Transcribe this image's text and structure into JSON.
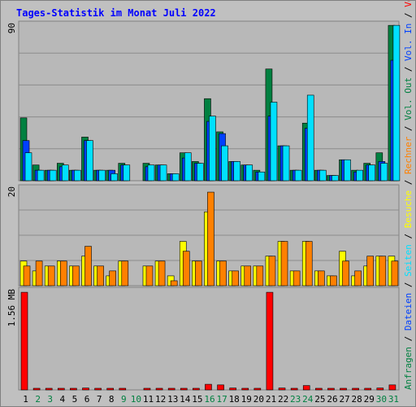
{
  "title": "Tages-Statistik im Monat Juli 2022",
  "colors": {
    "background": "#c0c0c0",
    "panel": "#b8b8b8",
    "title": "#0000ff",
    "grid": "#8c8c8c",
    "weekday_label": "#000000",
    "weekend_label": "#008040",
    "anfragen": "#008040",
    "dateien": "#0040ff",
    "seiten": "#00e0ff",
    "besuche": "#ffff00",
    "rechner": "#ff8000",
    "volumen": "#ff0000"
  },
  "right_labels": [
    [
      {
        "text": "Anfragen",
        "color": "#008040"
      },
      {
        "text": " / ",
        "color": "#000000"
      },
      {
        "text": "Dateien",
        "color": "#0040ff"
      },
      {
        "text": " / ",
        "color": "#000000"
      },
      {
        "text": "Seiten",
        "color": "#00e0ff"
      },
      {
        "text": " / ",
        "color": "#000000"
      },
      {
        "text": "Besuche",
        "color": "#ffff00"
      },
      {
        "text": " / ",
        "color": "#000000"
      },
      {
        "text": "Rechner",
        "color": "#ff8000"
      },
      {
        "text": " / ",
        "color": "#000000"
      },
      {
        "text": "Vol. Out",
        "color": "#008040"
      },
      {
        "text": " / ",
        "color": "#000000"
      },
      {
        "text": "Vol. In",
        "color": "#0040ff"
      },
      {
        "text": " / ",
        "color": "#000000"
      },
      {
        "text": "Volumen",
        "color": "#ff0000"
      }
    ]
  ],
  "chart_data": [
    {
      "type": "bar",
      "panel": "hits",
      "ymax_label": "90",
      "ylim": [
        0,
        90
      ],
      "categories": [
        "1",
        "2",
        "3",
        "4",
        "5",
        "6",
        "7",
        "8",
        "9",
        "10",
        "11",
        "12",
        "13",
        "14",
        "15",
        "16",
        "17",
        "18",
        "19",
        "20",
        "21",
        "22",
        "23",
        "24",
        "25",
        "26",
        "27",
        "28",
        "29",
        "30",
        "31"
      ],
      "series": [
        {
          "name": "Anfragen",
          "values": [
            36,
            9,
            6,
            10,
            6,
            25,
            6,
            6,
            10,
            0,
            10,
            9,
            4,
            16,
            11,
            47,
            28,
            11,
            9,
            6,
            64,
            20,
            6,
            33,
            6,
            3,
            12,
            6,
            10,
            16,
            89
          ]
        },
        {
          "name": "Dateien",
          "values": [
            23,
            6,
            6,
            8,
            6,
            23,
            6,
            6,
            9,
            0,
            8,
            9,
            4,
            13,
            10,
            34,
            27,
            11,
            9,
            5,
            37,
            20,
            6,
            30,
            6,
            3,
            12,
            5,
            9,
            11,
            69
          ]
        },
        {
          "name": "Seiten",
          "values": [
            16,
            6,
            6,
            9,
            6,
            23,
            6,
            4,
            9,
            0,
            9,
            9,
            4,
            16,
            10,
            37,
            20,
            11,
            9,
            5,
            45,
            20,
            6,
            49,
            6,
            3,
            12,
            6,
            9,
            10,
            89
          ]
        }
      ]
    },
    {
      "type": "bar",
      "panel": "visits",
      "ymax_label": "20",
      "ylim": [
        0,
        20
      ],
      "categories": [
        "1",
        "2",
        "3",
        "4",
        "5",
        "6",
        "7",
        "8",
        "9",
        "10",
        "11",
        "12",
        "13",
        "14",
        "15",
        "16",
        "17",
        "18",
        "19",
        "20",
        "21",
        "22",
        "23",
        "24",
        "25",
        "26",
        "27",
        "28",
        "29",
        "30",
        "31"
      ],
      "series": [
        {
          "name": "Besuche",
          "values": [
            5,
            3,
            4,
            5,
            4,
            6,
            4,
            2,
            5,
            0,
            4,
            5,
            2,
            9,
            5,
            15,
            5,
            3,
            4,
            4,
            6,
            9,
            3,
            9,
            3,
            2,
            7,
            2,
            4,
            6,
            6
          ]
        },
        {
          "name": "Rechner",
          "values": [
            4,
            5,
            4,
            5,
            4,
            8,
            4,
            3,
            5,
            0,
            4,
            5,
            1,
            7,
            5,
            19,
            5,
            3,
            4,
            4,
            6,
            9,
            3,
            9,
            3,
            2,
            5,
            3,
            6,
            6,
            5
          ]
        }
      ]
    },
    {
      "type": "bar",
      "panel": "volume",
      "ymax_label": "1.56 MB",
      "ylim": [
        0,
        1.6
      ],
      "categories": [
        "1",
        "2",
        "3",
        "4",
        "5",
        "6",
        "7",
        "8",
        "9",
        "10",
        "11",
        "12",
        "13",
        "14",
        "15",
        "16",
        "17",
        "18",
        "19",
        "20",
        "21",
        "22",
        "23",
        "24",
        "25",
        "26",
        "27",
        "28",
        "29",
        "30",
        "31"
      ],
      "series": [
        {
          "name": "Volumen",
          "values": [
            1.56,
            0.01,
            0.01,
            0.01,
            0.01,
            0.03,
            0.01,
            0.01,
            0.01,
            0,
            0.01,
            0.01,
            0.01,
            0.01,
            0.01,
            0.09,
            0.08,
            0.03,
            0.01,
            0.01,
            1.56,
            0.03,
            0.01,
            0.07,
            0.01,
            0.01,
            0.01,
            0.01,
            0.01,
            0.03,
            0.08
          ]
        }
      ]
    }
  ],
  "weekend_days": [
    "2",
    "3",
    "9",
    "10",
    "16",
    "17",
    "23",
    "24",
    "30",
    "31"
  ]
}
